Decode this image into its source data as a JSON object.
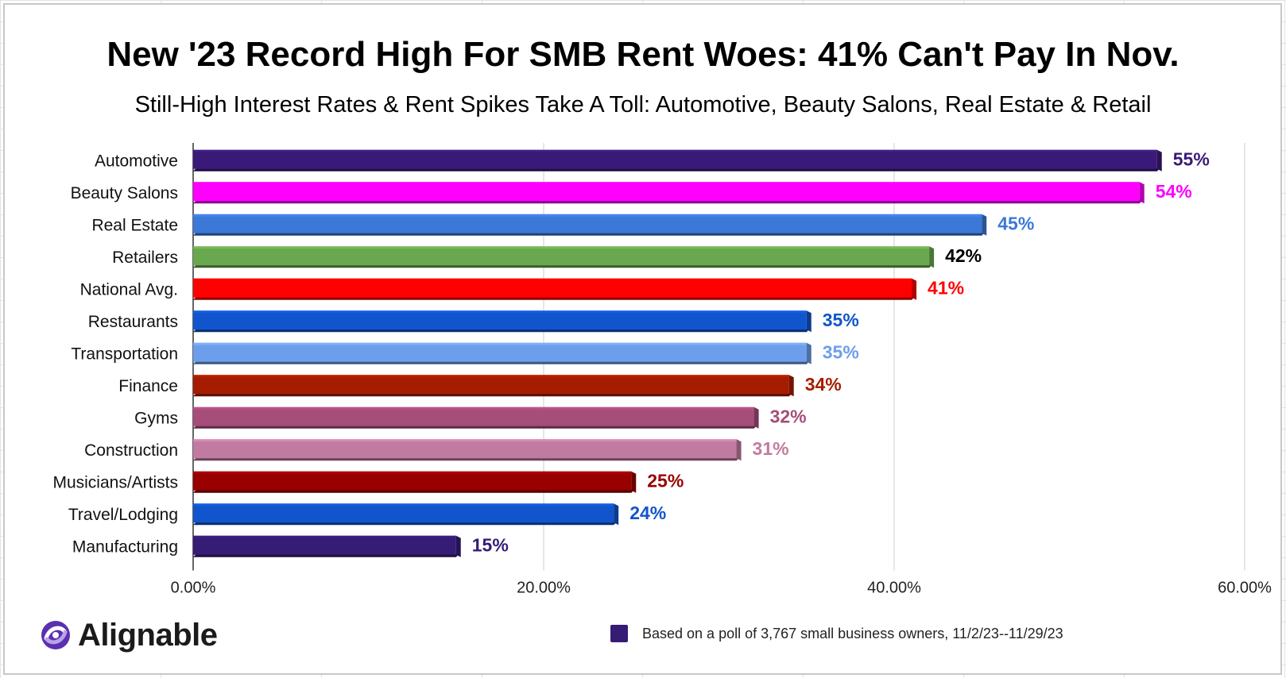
{
  "chart_data": {
    "type": "bar",
    "orientation": "horizontal",
    "title": "New '23 Record High For SMB Rent Woes: 41% Can't Pay In Nov.",
    "subtitle": "Still-High Interest Rates & Rent Spikes Take A Toll: Automotive, Beauty Salons, Real Estate & Retail",
    "categories": [
      "Automotive",
      "Beauty Salons",
      "Real Estate",
      "Retailers",
      "National Avg.",
      "Restaurants",
      "Transportation",
      "Finance",
      "Gyms",
      "Construction",
      "Musicians/Artists",
      "Travel/Lodging",
      "Manufacturing"
    ],
    "values": [
      55,
      54,
      45,
      42,
      41,
      35,
      35,
      34,
      32,
      31,
      25,
      24,
      15
    ],
    "value_labels": [
      "55%",
      "54%",
      "45%",
      "42%",
      "41%",
      "35%",
      "35%",
      "34%",
      "32%",
      "31%",
      "25%",
      "24%",
      "15%"
    ],
    "bar_colors": [
      "#3a1a78",
      "#ff00ff",
      "#3c78d8",
      "#6aa84f",
      "#ff0000",
      "#1155cc",
      "#6d9eeb",
      "#a61c00",
      "#a64d79",
      "#c27ba0",
      "#990000",
      "#1155cc",
      "#351c75"
    ],
    "label_colors": [
      "#3a1a78",
      "#ff00ff",
      "#3c78d8",
      "#000000",
      "#ff0000",
      "#1155cc",
      "#6d9eeb",
      "#a61c00",
      "#a64d79",
      "#c27ba0",
      "#990000",
      "#1155cc",
      "#351c75"
    ],
    "xlim": [
      0,
      60
    ],
    "xticks": [
      0,
      20,
      40,
      60
    ],
    "xtick_labels": [
      "0.00%",
      "20.00%",
      "40.00%",
      "60.00%"
    ],
    "xlabel": "",
    "ylabel": "",
    "grid": true,
    "legend_position": "bottom-right",
    "legend": {
      "text": "Based on a poll of 3,767 small business owners, 11/2/23--11/29/23",
      "color": "#351c75"
    }
  },
  "brand": {
    "name": "Alignable"
  }
}
